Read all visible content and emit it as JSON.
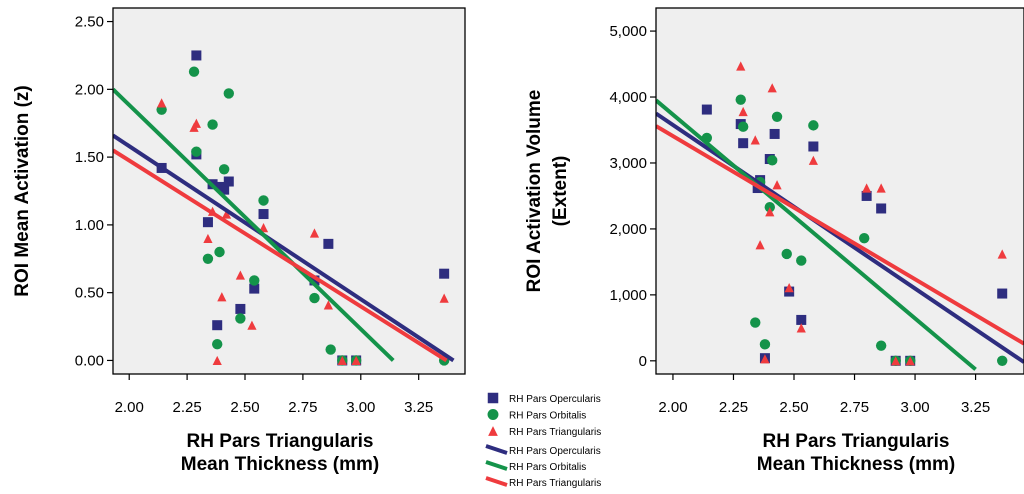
{
  "colors": {
    "opercularis": "#2e2d7f",
    "orbitalis": "#14934a",
    "triangularis": "#ef3b3e"
  },
  "legend": {
    "markers": [
      {
        "label": "RH Pars Opercularis",
        "series": "opercularis",
        "marker": "square"
      },
      {
        "label": "RH Pars Orbitalis",
        "series": "orbitalis",
        "marker": "circle"
      },
      {
        "label": "RH Pars Triangularis",
        "series": "triangularis",
        "marker": "triangle"
      }
    ],
    "lines": [
      {
        "label": "RH Pars Opercularis",
        "series": "opercularis"
      },
      {
        "label": "RH Pars Orbitalis",
        "series": "orbitalis"
      },
      {
        "label": "RH Pars Triangularis",
        "series": "triangularis"
      }
    ]
  },
  "chart_data": [
    {
      "type": "scatter",
      "xlabel": [
        "RH Pars Triangularis",
        "Mean Thickness (mm)"
      ],
      "ylabel": [
        "ROI Mean Activation (z)"
      ],
      "xlim": [
        1.93,
        3.45
      ],
      "ylim": [
        -0.1,
        2.6
      ],
      "xticks": [
        2.0,
        2.25,
        2.5,
        2.75,
        3.0,
        3.25
      ],
      "xtick_labels": [
        "2.00",
        "2.25",
        "2.50",
        "2.75",
        "3.00",
        "3.25"
      ],
      "yticks": [
        0.0,
        0.5,
        1.0,
        1.5,
        2.0,
        2.5
      ],
      "ytick_labels": [
        "0.00",
        "0.50",
        "1.00",
        "1.50",
        "2.00",
        "2.50"
      ],
      "grid": false,
      "series": [
        {
          "key": "opercularis",
          "marker": "square",
          "points": [
            [
              2.14,
              1.42
            ],
            [
              2.29,
              2.25
            ],
            [
              2.29,
              1.52
            ],
            [
              2.34,
              1.02
            ],
            [
              2.36,
              1.3
            ],
            [
              2.38,
              0.26
            ],
            [
              2.4,
              1.28
            ],
            [
              2.41,
              1.26
            ],
            [
              2.43,
              1.32
            ],
            [
              2.48,
              0.38
            ],
            [
              2.54,
              0.53
            ],
            [
              2.58,
              1.08
            ],
            [
              2.8,
              0.59
            ],
            [
              2.86,
              0.86
            ],
            [
              2.92,
              0.0
            ],
            [
              2.98,
              0.0
            ],
            [
              3.36,
              0.64
            ]
          ]
        },
        {
          "key": "orbitalis",
          "marker": "circle",
          "points": [
            [
              2.14,
              1.85
            ],
            [
              2.28,
              2.13
            ],
            [
              2.29,
              1.54
            ],
            [
              2.34,
              0.75
            ],
            [
              2.36,
              1.74
            ],
            [
              2.38,
              0.12
            ],
            [
              2.39,
              0.8
            ],
            [
              2.41,
              1.41
            ],
            [
              2.43,
              1.97
            ],
            [
              2.48,
              0.31
            ],
            [
              2.54,
              0.59
            ],
            [
              2.58,
              1.18
            ],
            [
              2.8,
              0.46
            ],
            [
              2.87,
              0.08
            ],
            [
              2.92,
              0.0
            ],
            [
              2.98,
              0.0
            ],
            [
              3.36,
              0.0
            ]
          ]
        },
        {
          "key": "triangularis",
          "marker": "triangle",
          "points": [
            [
              2.14,
              1.9
            ],
            [
              2.28,
              1.72
            ],
            [
              2.29,
              1.75
            ],
            [
              2.34,
              0.9
            ],
            [
              2.36,
              1.1
            ],
            [
              2.38,
              0.0
            ],
            [
              2.4,
              0.47
            ],
            [
              2.42,
              1.08
            ],
            [
              2.48,
              0.63
            ],
            [
              2.53,
              0.26
            ],
            [
              2.58,
              0.98
            ],
            [
              2.8,
              0.94
            ],
            [
              2.86,
              0.41
            ],
            [
              2.92,
              0.0
            ],
            [
              2.98,
              0.0
            ],
            [
              3.36,
              0.46
            ]
          ]
        }
      ],
      "fit_lines": [
        {
          "key": "opercularis",
          "x": [
            1.93,
            3.4
          ],
          "y": [
            1.66,
            0.0
          ]
        },
        {
          "key": "orbitalis",
          "x": [
            1.93,
            3.14
          ],
          "y": [
            2.0,
            0.0
          ]
        },
        {
          "key": "triangularis",
          "x": [
            1.93,
            3.37
          ],
          "y": [
            1.55,
            0.0
          ]
        }
      ]
    },
    {
      "type": "scatter",
      "xlabel": [
        "RH Pars Triangularis",
        "Mean Thickness (mm)"
      ],
      "ylabel": [
        "ROI Activation Volume",
        "(Extent)"
      ],
      "xlim": [
        1.93,
        3.45
      ],
      "ylim": [
        -200,
        5350
      ],
      "xticks": [
        2.0,
        2.25,
        2.5,
        2.75,
        3.0,
        3.25
      ],
      "xtick_labels": [
        "2.00",
        "2.25",
        "2.50",
        "2.75",
        "3.00",
        "3.25"
      ],
      "yticks": [
        0,
        1000,
        2000,
        3000,
        4000,
        5000
      ],
      "ytick_labels": [
        "0",
        "1,000",
        "2,000",
        "3,000",
        "4,000",
        "5,000"
      ],
      "grid": false,
      "series": [
        {
          "key": "opercularis",
          "marker": "square",
          "points": [
            [
              2.14,
              3810
            ],
            [
              2.28,
              3590
            ],
            [
              2.29,
              3300
            ],
            [
              2.35,
              2620
            ],
            [
              2.36,
              2740
            ],
            [
              2.38,
              40
            ],
            [
              2.4,
              3060
            ],
            [
              2.42,
              3440
            ],
            [
              2.48,
              1050
            ],
            [
              2.53,
              620
            ],
            [
              2.58,
              3250
            ],
            [
              2.8,
              2500
            ],
            [
              2.86,
              2310
            ],
            [
              2.92,
              0
            ],
            [
              2.98,
              0
            ],
            [
              3.36,
              1020
            ]
          ]
        },
        {
          "key": "orbitalis",
          "marker": "circle",
          "points": [
            [
              2.14,
              3380
            ],
            [
              2.28,
              3960
            ],
            [
              2.29,
              3550
            ],
            [
              2.34,
              580
            ],
            [
              2.36,
              2710
            ],
            [
              2.38,
              250
            ],
            [
              2.4,
              2330
            ],
            [
              2.41,
              3040
            ],
            [
              2.43,
              3700
            ],
            [
              2.47,
              1620
            ],
            [
              2.53,
              1520
            ],
            [
              2.58,
              3570
            ],
            [
              2.79,
              1860
            ],
            [
              2.86,
              230
            ],
            [
              2.92,
              0
            ],
            [
              2.98,
              0
            ],
            [
              3.36,
              0
            ]
          ]
        },
        {
          "key": "triangularis",
          "marker": "triangle",
          "points": [
            [
              2.28,
              4470
            ],
            [
              2.29,
              3780
            ],
            [
              2.34,
              3350
            ],
            [
              2.36,
              1760
            ],
            [
              2.38,
              30
            ],
            [
              2.4,
              2260
            ],
            [
              2.41,
              4140
            ],
            [
              2.43,
              2670
            ],
            [
              2.48,
              1110
            ],
            [
              2.53,
              500
            ],
            [
              2.58,
              3040
            ],
            [
              2.8,
              2620
            ],
            [
              2.86,
              2620
            ],
            [
              2.92,
              0
            ],
            [
              2.98,
              0
            ],
            [
              3.36,
              1620
            ]
          ]
        }
      ],
      "fit_lines": [
        {
          "key": "opercularis",
          "x": [
            1.93,
            3.45
          ],
          "y": [
            3750,
            -20
          ]
        },
        {
          "key": "orbitalis",
          "x": [
            1.93,
            3.25
          ],
          "y": [
            3950,
            -130
          ]
        },
        {
          "key": "triangularis",
          "x": [
            1.93,
            3.45
          ],
          "y": [
            3560,
            260
          ]
        }
      ]
    }
  ]
}
